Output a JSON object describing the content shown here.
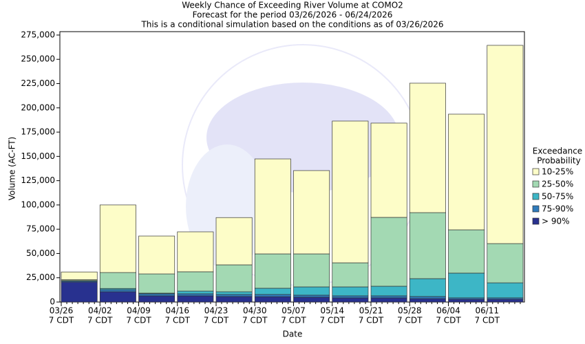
{
  "chart_data": {
    "type": "stacked_bar",
    "title": [
      "Weekly Chance of Exceeding River Volume at COMO2",
      "Forecast for the period 03/26/2026 - 06/24/2026",
      "This is a conditional simulation based on the conditions as of 03/26/2026"
    ],
    "x_label": "Date",
    "y_label": "Volume (AC-FT)",
    "categories": [
      "03/26",
      "04/02",
      "04/09",
      "04/16",
      "04/23",
      "04/30",
      "05/07",
      "05/14",
      "05/21",
      "05/28",
      "06/04",
      "06/11"
    ],
    "tick_sublabel": "7 CDT",
    "ylim": [
      0,
      278500
    ],
    "yticks": [
      0,
      {
        "value": 25000,
        "label": "25,000"
      },
      {
        "value": 50000,
        "label": "50,000"
      },
      {
        "value": 75000,
        "label": "75,000"
      },
      {
        "value": 100000,
        "label": "100,000"
      },
      {
        "value": 125000,
        "label": "125,000"
      },
      {
        "value": 150000,
        "label": "150,000"
      },
      {
        "value": 175000,
        "label": "175,000"
      },
      {
        "value": 200000,
        "label": "200,000"
      },
      {
        "value": 225000,
        "label": "225,000"
      },
      {
        "value": 250000,
        "label": "250,000"
      },
      {
        "value": 275000,
        "label": "275,000"
      }
    ],
    "legend_title": [
      "Exceedance",
      "Probability"
    ],
    "legend_position": "right",
    "series": [
      {
        "name": "> 90%",
        "color": "#28318f",
        "values": [
          20500,
          10600,
          6400,
          6400,
          5700,
          5500,
          5000,
          4300,
          4300,
          3500,
          2800,
          2800
        ]
      },
      {
        "name": "75-90%",
        "color": "#2f7bbb",
        "values": [
          1000,
          2100,
          2100,
          2100,
          2100,
          2300,
          2100,
          2100,
          2100,
          2200,
          1500,
          1500
        ]
      },
      {
        "name": "50-75%",
        "color": "#3db6c6",
        "values": [
          500,
          1300,
          700,
          2800,
          2800,
          6400,
          8500,
          9200,
          9900,
          18400,
          25500,
          15500
        ]
      },
      {
        "name": "25-50%",
        "color": "#a3d9b3",
        "values": [
          1000,
          16400,
          19800,
          19900,
          27700,
          35400,
          34000,
          24800,
          70900,
          68000,
          44600,
          40400
        ]
      },
      {
        "name": "10-25%",
        "color": "#fdfdc8",
        "values": [
          8000,
          69600,
          39000,
          41100,
          48700,
          97800,
          85800,
          146000,
          97100,
          133300,
          119100,
          204200
        ]
      }
    ]
  }
}
